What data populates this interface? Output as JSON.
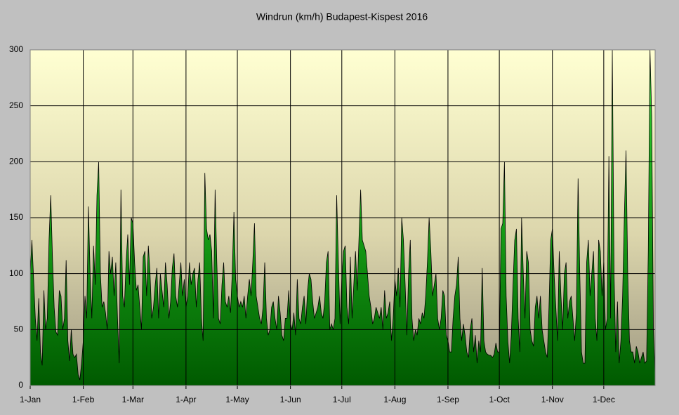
{
  "chart_data": {
    "type": "area",
    "title": "Windrun (km/h) Budapest-Kispest 2016",
    "categories": [
      "1-Jan",
      null,
      null,
      null,
      null,
      null,
      null,
      null,
      null,
      null,
      null,
      null,
      null,
      null,
      null,
      null,
      null,
      null,
      null,
      null,
      null,
      null,
      null,
      null,
      null,
      null,
      null,
      null,
      null,
      null,
      null,
      "1-Feb",
      null,
      null,
      null,
      null,
      null,
      null,
      null,
      null,
      null,
      null,
      null,
      null,
      null,
      null,
      null,
      null,
      null,
      null,
      null,
      null,
      null,
      null,
      null,
      null,
      null,
      null,
      null,
      null,
      "1-Mar",
      null,
      null,
      null,
      null,
      null,
      null,
      null,
      null,
      null,
      null,
      null,
      null,
      null,
      null,
      null,
      null,
      null,
      null,
      null,
      null,
      null,
      null,
      null,
      null,
      null,
      null,
      null,
      null,
      null,
      null,
      "1-Apr",
      null,
      null,
      null,
      null,
      null,
      null,
      null,
      null,
      null,
      null,
      null,
      null,
      null,
      null,
      null,
      null,
      null,
      null,
      null,
      null,
      null,
      null,
      null,
      null,
      null,
      null,
      null,
      null,
      null,
      "1-May",
      null,
      null,
      null,
      null,
      null,
      null,
      null,
      null,
      null,
      null,
      null,
      null,
      null,
      null,
      null,
      null,
      null,
      null,
      null,
      null,
      null,
      null,
      null,
      null,
      null,
      null,
      null,
      null,
      null,
      null,
      "1-Jun",
      null,
      null,
      null,
      null,
      null,
      null,
      null,
      null,
      null,
      null,
      null,
      null,
      null,
      null,
      null,
      null,
      null,
      null,
      null,
      null,
      null,
      null,
      null,
      null,
      null,
      null,
      null,
      null,
      null,
      "1-Jul",
      null,
      null,
      null,
      null,
      null,
      null,
      null,
      null,
      null,
      null,
      null,
      null,
      null,
      null,
      null,
      null,
      null,
      null,
      null,
      null,
      null,
      null,
      null,
      null,
      null,
      null,
      null,
      null,
      null,
      null,
      "1-Aug",
      null,
      null,
      null,
      null,
      null,
      null,
      null,
      null,
      null,
      null,
      null,
      null,
      null,
      null,
      null,
      null,
      null,
      null,
      null,
      null,
      null,
      null,
      null,
      null,
      null,
      null,
      null,
      null,
      null,
      null,
      "1-Sep",
      null,
      null,
      null,
      null,
      null,
      null,
      null,
      null,
      null,
      null,
      null,
      null,
      null,
      null,
      null,
      null,
      null,
      null,
      null,
      null,
      null,
      null,
      null,
      null,
      null,
      null,
      null,
      null,
      null,
      "1-Oct",
      null,
      null,
      null,
      null,
      null,
      null,
      null,
      null,
      null,
      null,
      null,
      null,
      null,
      null,
      null,
      null,
      null,
      null,
      null,
      null,
      null,
      null,
      null,
      null,
      null,
      null,
      null,
      null,
      null,
      null,
      "1-Nov",
      null,
      null,
      null,
      null,
      null,
      null,
      null,
      null,
      null,
      null,
      null,
      null,
      null,
      null,
      null,
      null,
      null,
      null,
      null,
      null,
      null,
      null,
      null,
      null,
      null,
      null,
      null,
      null,
      null,
      "1-Dec",
      null,
      null,
      null,
      null,
      null,
      null,
      null,
      null,
      null,
      null,
      null,
      null,
      null,
      null,
      null,
      null,
      null,
      null,
      null,
      null,
      null,
      null,
      null,
      null,
      null,
      null,
      null,
      null,
      null,
      null
    ],
    "values": [
      100,
      130,
      95,
      60,
      40,
      78,
      30,
      18,
      85,
      50,
      60,
      130,
      170,
      115,
      70,
      48,
      45,
      85,
      80,
      50,
      60,
      112,
      40,
      22,
      50,
      28,
      25,
      28,
      10,
      5,
      20,
      40,
      80,
      60,
      160,
      100,
      60,
      125,
      90,
      170,
      200,
      100,
      70,
      75,
      65,
      50,
      120,
      100,
      115,
      80,
      110,
      60,
      20,
      175,
      80,
      70,
      110,
      135,
      90,
      150,
      145,
      110,
      85,
      90,
      70,
      50,
      115,
      120,
      80,
      125,
      100,
      60,
      70,
      90,
      105,
      60,
      100,
      85,
      70,
      110,
      90,
      60,
      75,
      105,
      118,
      80,
      70,
      90,
      110,
      80,
      95,
      70,
      80,
      110,
      90,
      100,
      105,
      70,
      95,
      110,
      60,
      40,
      190,
      140,
      130,
      135,
      120,
      60,
      175,
      110,
      60,
      55,
      90,
      110,
      75,
      70,
      80,
      65,
      100,
      155,
      95,
      80,
      70,
      75,
      70,
      80,
      60,
      80,
      95,
      80,
      110,
      145,
      80,
      70,
      60,
      55,
      70,
      110,
      60,
      45,
      50,
      70,
      75,
      60,
      50,
      80,
      65,
      45,
      40,
      60,
      60,
      85,
      55,
      50,
      65,
      45,
      95,
      60,
      55,
      70,
      80,
      55,
      85,
      100,
      95,
      75,
      60,
      65,
      70,
      80,
      65,
      60,
      75,
      110,
      120,
      50,
      55,
      50,
      60,
      170,
      110,
      55,
      95,
      120,
      125,
      70,
      55,
      115,
      60,
      90,
      120,
      85,
      130,
      175,
      130,
      125,
      120,
      100,
      80,
      70,
      55,
      60,
      70,
      65,
      60,
      70,
      50,
      85,
      60,
      65,
      75,
      40,
      60,
      95,
      80,
      105,
      70,
      150,
      130,
      90,
      45,
      100,
      130,
      60,
      40,
      50,
      45,
      60,
      55,
      65,
      60,
      80,
      110,
      150,
      120,
      80,
      90,
      100,
      60,
      50,
      60,
      85,
      80,
      45,
      40,
      30,
      30,
      60,
      80,
      90,
      115,
      60,
      40,
      55,
      45,
      30,
      25,
      50,
      60,
      30,
      45,
      20,
      40,
      30,
      105,
      40,
      30,
      28,
      27,
      27,
      25,
      28,
      38,
      30,
      30,
      140,
      145,
      200,
      80,
      40,
      20,
      45,
      90,
      130,
      140,
      60,
      30,
      150,
      100,
      60,
      120,
      110,
      50,
      40,
      35,
      70,
      80,
      60,
      80,
      50,
      40,
      30,
      25,
      70,
      130,
      140,
      100,
      70,
      40,
      120,
      80,
      50,
      100,
      110,
      60,
      75,
      80,
      60,
      40,
      65,
      185,
      100,
      30,
      20,
      20,
      110,
      130,
      80,
      100,
      120,
      60,
      40,
      130,
      120,
      80,
      110,
      50,
      60,
      205,
      60,
      300,
      100,
      30,
      75,
      20,
      40,
      80,
      150,
      210,
      100,
      40,
      30,
      30,
      20,
      35,
      30,
      20,
      25,
      30,
      20,
      22,
      120,
      300,
      240,
      50,
      10
    ],
    "color": "#1a9a1a",
    "ylim": [
      0,
      300
    ],
    "yticks": [
      0,
      50,
      100,
      150,
      200,
      250,
      300
    ],
    "grid": true
  }
}
